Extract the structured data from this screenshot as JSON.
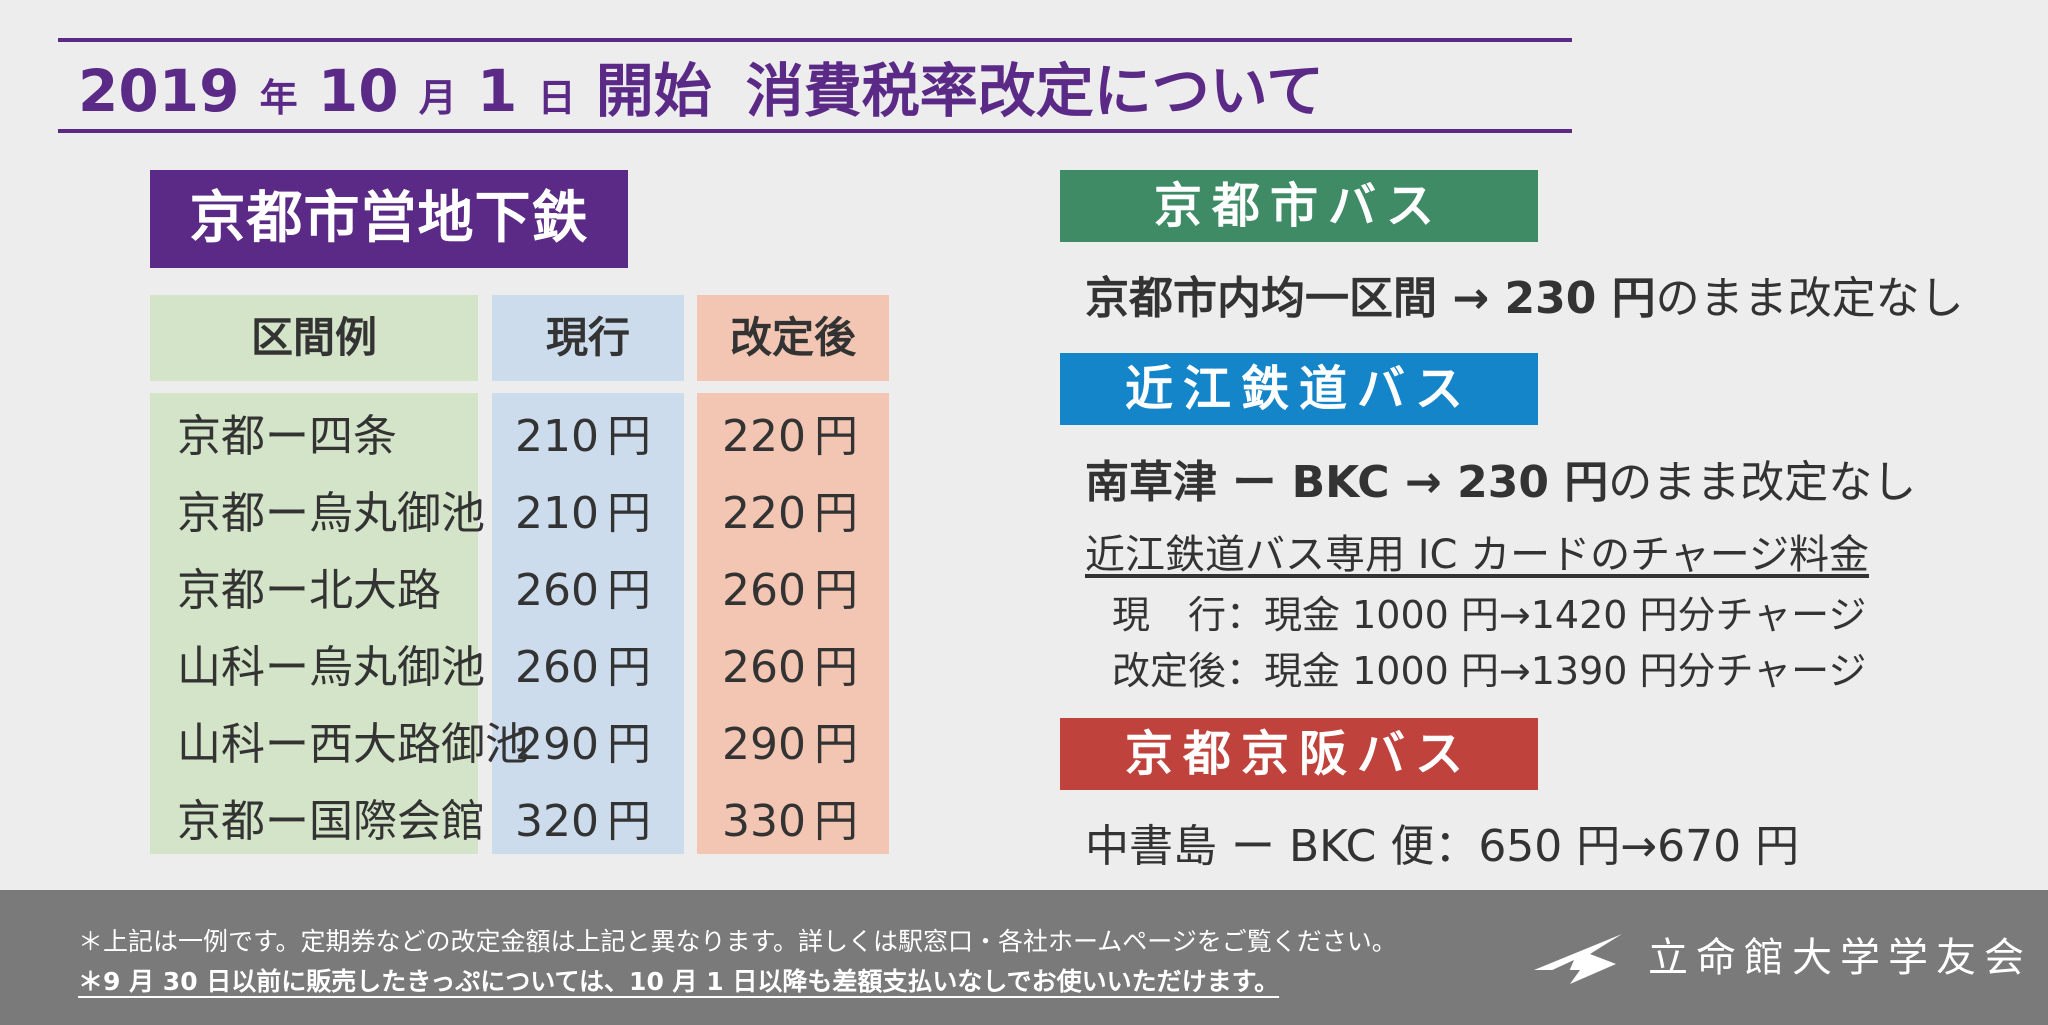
{
  "title": {
    "year": "2019",
    "year_unit": "年",
    "month": "10",
    "month_unit": "月",
    "day": "1",
    "day_unit": "日",
    "start": "開始",
    "subject": "消費税率改定について"
  },
  "subway": {
    "heading": "京都市営地下鉄",
    "columns": [
      "区間例",
      "現行",
      "改定後"
    ],
    "yen": "円",
    "rows": [
      {
        "route": "京都ー四条",
        "current": "210",
        "revised": "220"
      },
      {
        "route": "京都ー烏丸御池",
        "current": "210",
        "revised": "220"
      },
      {
        "route": "京都ー北大路",
        "current": "260",
        "revised": "260"
      },
      {
        "route": "山科ー烏丸御池",
        "current": "260",
        "revised": "260"
      },
      {
        "route": "山科ー西大路御池",
        "current": "290",
        "revised": "290"
      },
      {
        "route": "京都ー国際会館",
        "current": "320",
        "revised": "330"
      }
    ]
  },
  "city_bus": {
    "heading": "京都市バス",
    "line_a": "京都市内均一区間 → 230 円",
    "line_b": "のまま改定なし"
  },
  "ohmi_bus": {
    "heading": "近江鉄道バス",
    "line_a": "南草津 ー BKC → 230 円",
    "line_b": "のまま改定なし",
    "card_title": "近江鉄道バス専用 IC カードのチャージ料金",
    "current_label": "現　行：",
    "current_value": "現金 1000 円→1420 円分チャージ",
    "revised_label": "改定後：",
    "revised_value": "現金 1000 円→1390 円分チャージ"
  },
  "keihan_bus": {
    "heading": "京都京阪バス",
    "line": "中書島 ー BKC 便：650 円→670 円"
  },
  "footer": {
    "note1": "＊上記は一例です。定期券などの改定金額は上記と異なります。詳しくは駅窓口・各社ホームページをご覧ください。",
    "note2": "＊9 月 30 日以前に販売したきっぷについては、10 月 1 日以降も差額支払いなしでお使いいただけます。",
    "org": "立命館大学学友会"
  },
  "colors": {
    "purple": "#5b2a86",
    "city_bus_green": "#3f8b66",
    "ohmi_bus_blue": "#1585c9",
    "keihan_bus_red": "#c0423c",
    "footer_gray": "#7a7a7a"
  }
}
